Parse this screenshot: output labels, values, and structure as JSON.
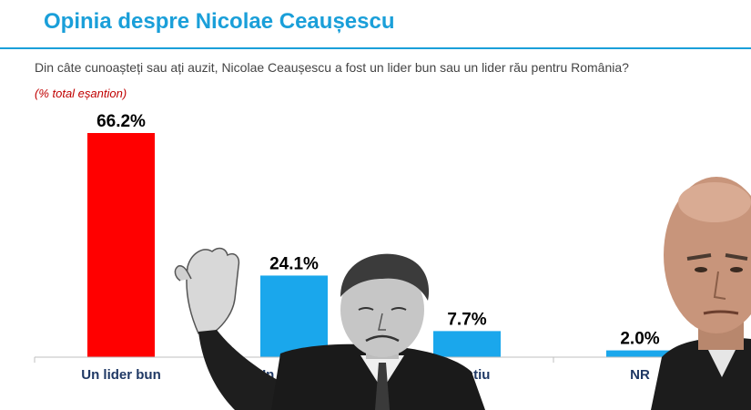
{
  "header": {
    "title": "Opinia despre Nicolae Ceaușescu",
    "question": "Din câte cunoașteți sau ați auzit, Nicolae Ceaușescu a fost un lider bun sau un lider rău pentru România?",
    "note": "(% total eșantion)"
  },
  "chart_data": {
    "type": "bar",
    "categories": [
      "Un lider bun",
      "Un lider rău",
      "Nu știu",
      "NR"
    ],
    "values": [
      66.2,
      24.1,
      7.7,
      2.0
    ],
    "value_labels": [
      "66.2%",
      "24.1%",
      "7.7%",
      "2.0%"
    ],
    "bar_colors": [
      "#ff0000",
      "#1aa7ec",
      "#1aa7ec",
      "#1aa7ec"
    ],
    "ylim": [
      0,
      70
    ],
    "grid": false,
    "legend": "none"
  },
  "overlays": {
    "photo_left": "ceausescu-photo",
    "photo_right": "politician-photo"
  },
  "colors": {
    "title": "#1a9fd9",
    "note": "#c00000",
    "category_label": "#1f3864"
  }
}
